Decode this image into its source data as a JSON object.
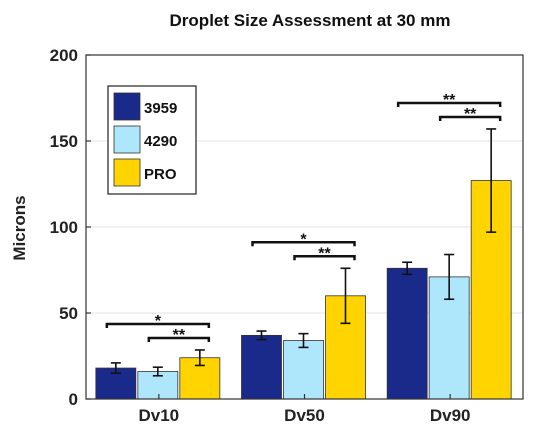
{
  "chart_data": {
    "type": "bar",
    "title": "Droplet Size Assessment at 30 mm",
    "xlabel": "",
    "ylabel": "Microns",
    "ylim": [
      0,
      200
    ],
    "yticks": [
      0,
      50,
      100,
      150,
      200
    ],
    "categories": [
      "Dv10",
      "Dv50",
      "Dv90"
    ],
    "series": [
      {
        "name": "3959",
        "color": "#1a2a8a",
        "values": [
          18,
          37,
          76
        ],
        "err": [
          3,
          2.5,
          3.5
        ]
      },
      {
        "name": "4290",
        "color": "#aee6fb",
        "values": [
          16,
          34,
          71
        ],
        "err": [
          2.5,
          4,
          13
        ]
      },
      {
        "name": "PRO",
        "color": "#ffd400",
        "values": [
          24,
          60,
          127
        ],
        "err": [
          4.5,
          16,
          30
        ]
      }
    ],
    "grid": true,
    "legend": "top-left",
    "significance": [
      {
        "category": 0,
        "from": 0,
        "to": 2,
        "label": "*"
      },
      {
        "category": 0,
        "from": 1,
        "to": 2,
        "label": "**"
      },
      {
        "category": 1,
        "from": 0,
        "to": 2,
        "label": "*"
      },
      {
        "category": 1,
        "from": 1,
        "to": 2,
        "label": "**"
      },
      {
        "category": 2,
        "from": 0,
        "to": 2,
        "label": "**"
      },
      {
        "category": 2,
        "from": 1,
        "to": 2,
        "label": "**"
      }
    ]
  }
}
